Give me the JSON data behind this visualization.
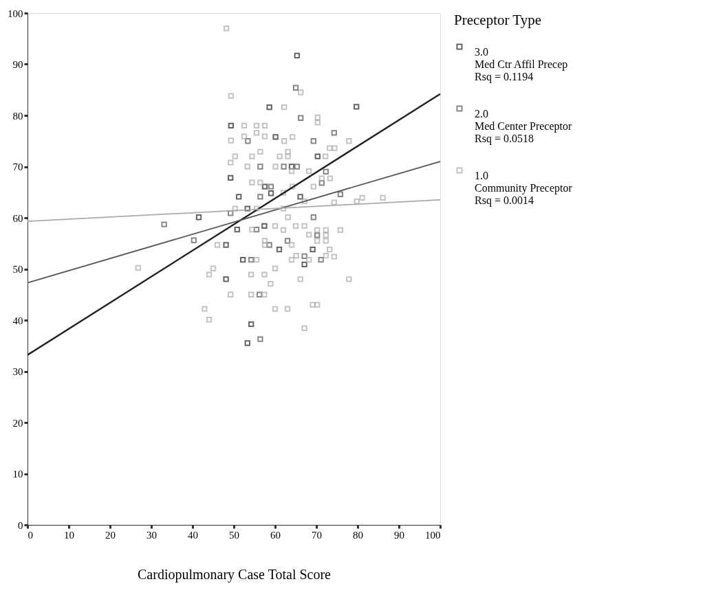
{
  "chart_data": {
    "type": "scatter",
    "xlabel": "Cardiopulmonary Case Total Score",
    "legend_title": "Preceptor Type",
    "legend": "right",
    "marker": "square",
    "grid": false,
    "xlim": [
      0,
      100
    ],
    "ylim": [
      0,
      100
    ],
    "xticks": [
      0,
      10,
      20,
      30,
      40,
      50,
      60,
      70,
      80,
      90,
      100
    ],
    "yticks": [
      0,
      10,
      20,
      30,
      40,
      50,
      60,
      70,
      80,
      90,
      100
    ],
    "series": [
      {
        "name": "3.0\nMed Ctr Affil Precep\nRsq = 0.1194",
        "color": "#222222",
        "x": [
          65.3,
          58.6,
          79.7,
          49.3,
          60.1,
          70.3,
          64.0,
          49.2,
          57.5,
          59.0,
          51.2,
          66.1,
          53.3,
          41.5,
          50.8,
          57.4,
          48.1,
          61.0,
          69.1,
          67.1,
          52.2,
          48.1,
          54.2,
          53.3
        ],
        "values": [
          91.7,
          81.6,
          81.7,
          78.0,
          75.8,
          72.0,
          70.0,
          67.8,
          66.1,
          64.8,
          64.1,
          64.1,
          61.8,
          60.1,
          57.7,
          58.4,
          54.7,
          53.8,
          53.8,
          50.9,
          51.8,
          48.0,
          39.2,
          35.5
        ]
      },
      {
        "name": "2.0\nMed Center Preceptor\nRsq = 0.0518",
        "color": "#555555",
        "x": [
          65.0,
          66.2,
          74.3,
          53.4,
          69.3,
          56.4,
          62.1,
          65.3,
          72.3,
          71.3,
          59.0,
          56.4,
          75.8,
          49.2,
          33.1,
          69.3,
          55.5,
          70.2,
          40.3,
          58.6,
          63.0,
          67.1,
          71.1,
          54.2,
          56.2,
          56.4
        ],
        "values": [
          85.4,
          79.5,
          76.6,
          75.0,
          75.0,
          70.0,
          70.0,
          70.0,
          69.0,
          66.8,
          66.1,
          64.1,
          64.6,
          60.9,
          58.7,
          60.1,
          57.7,
          56.6,
          55.6,
          54.7,
          55.5,
          52.5,
          51.8,
          51.8,
          45.0,
          36.3
        ]
      },
      {
        "name": "1.0\nCommunity Preceptor\nRsq = 0.0014",
        "color": "#aaaaaa",
        "x": [
          48.2,
          66.2,
          49.3,
          62.2,
          70.3,
          70.3,
          52.5,
          55.5,
          57.5,
          55.5,
          49.3,
          52.5,
          57.5,
          62.2,
          64.2,
          77.9,
          73.2,
          74.4,
          72.2,
          50.3,
          49.2,
          54.4,
          56.4,
          61.1,
          63.1,
          63.1,
          53.3,
          60.1,
          64.0,
          68.2,
          54.4,
          56.4,
          64.2,
          71.3,
          73.3,
          69.3,
          62.0,
          67.1,
          74.3,
          50.3,
          55.5,
          62.0,
          63.1,
          79.8,
          81.1,
          86.1,
          54.4,
          60.0,
          62.0,
          65.0,
          67.1,
          70.2,
          72.3,
          75.8,
          72.3,
          70.2,
          72.3,
          68.2,
          46.0,
          57.5,
          57.5,
          64.0,
          73.2,
          65.1,
          64.0,
          68.2,
          72.3,
          74.3,
          55.5,
          26.8,
          45.0,
          44.0,
          54.2,
          57.4,
          60.0,
          58.9,
          66.1,
          77.9,
          49.2,
          54.2,
          57.4,
          42.9,
          44.0,
          60.0,
          63.0,
          69.1,
          70.2,
          67.1
        ],
        "values": [
          97.0,
          84.5,
          83.8,
          81.6,
          79.6,
          78.6,
          78.0,
          78.0,
          78.0,
          76.6,
          75.1,
          75.9,
          75.9,
          75.0,
          75.8,
          75.0,
          73.6,
          73.6,
          72.0,
          72.0,
          70.8,
          72.0,
          72.9,
          72.0,
          72.9,
          72.0,
          70.0,
          70.0,
          69.1,
          69.1,
          66.9,
          66.9,
          66.1,
          67.7,
          67.7,
          66.1,
          64.9,
          63.2,
          63.0,
          61.8,
          61.8,
          61.8,
          60.1,
          63.2,
          63.9,
          63.9,
          57.7,
          58.4,
          57.6,
          58.4,
          58.4,
          57.6,
          57.6,
          57.6,
          56.6,
          55.5,
          55.5,
          56.7,
          54.7,
          55.5,
          54.7,
          54.7,
          53.8,
          52.6,
          51.8,
          51.8,
          52.6,
          52.4,
          51.8,
          50.2,
          50.1,
          48.9,
          48.9,
          48.9,
          50.1,
          47.1,
          48.0,
          48.0,
          45.0,
          45.0,
          45.0,
          42.2,
          40.1,
          42.2,
          42.2,
          43.0,
          43.0,
          38.4
        ]
      },
      {
        "type": "line",
        "marker": "none",
        "color": "#222222",
        "x": [
          0,
          100
        ],
        "values": [
          33.2,
          84.2
        ]
      },
      {
        "type": "line",
        "marker": "none",
        "color": "#555555",
        "x": [
          0,
          100
        ],
        "values": [
          47.3,
          71.0
        ]
      },
      {
        "type": "line",
        "marker": "none",
        "color": "#aaaaaa",
        "x": [
          0,
          100
        ],
        "values": [
          59.3,
          63.5
        ]
      }
    ]
  }
}
